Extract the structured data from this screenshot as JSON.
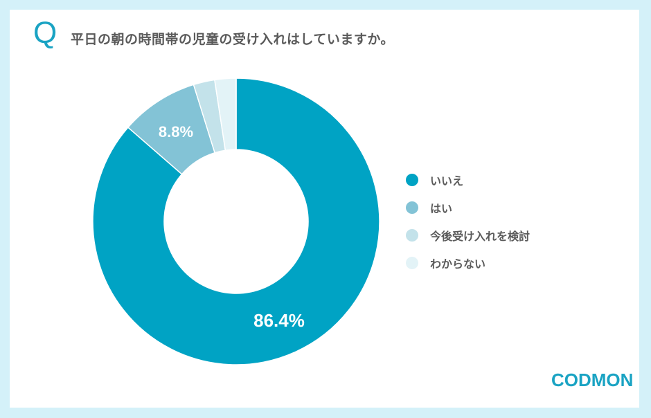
{
  "header": {
    "q_mark": "Q",
    "question": "平日の朝の時間帯の児童の受け入れはしていますか。"
  },
  "chart_data": {
    "type": "pie",
    "variant": "donut",
    "title": "平日の朝の時間帯の児童の受け入れはしていますか。",
    "categories": [
      "いいえ",
      "はい",
      "今後受け入れを検討",
      "わからない"
    ],
    "values": [
      86.4,
      8.8,
      2.4,
      2.4
    ],
    "colors": [
      "#00a3c4",
      "#83c3d6",
      "#c3e2ea",
      "#e3f3f7"
    ],
    "data_labels": [
      "86.4%",
      "8.8%",
      "",
      ""
    ],
    "legend_position": "right"
  },
  "legend": {
    "items": [
      {
        "label": "いいえ",
        "color": "#00a3c4"
      },
      {
        "label": "はい",
        "color": "#83c3d6"
      },
      {
        "label": "今後受け入れを検討",
        "color": "#c3e2ea"
      },
      {
        "label": "わからない",
        "color": "#e3f3f7"
      }
    ]
  },
  "labels": {
    "slice0": "86.4%",
    "slice1": "8.8%"
  },
  "brand": {
    "logo_text": "CODMON",
    "color": "#1aa3c3"
  }
}
